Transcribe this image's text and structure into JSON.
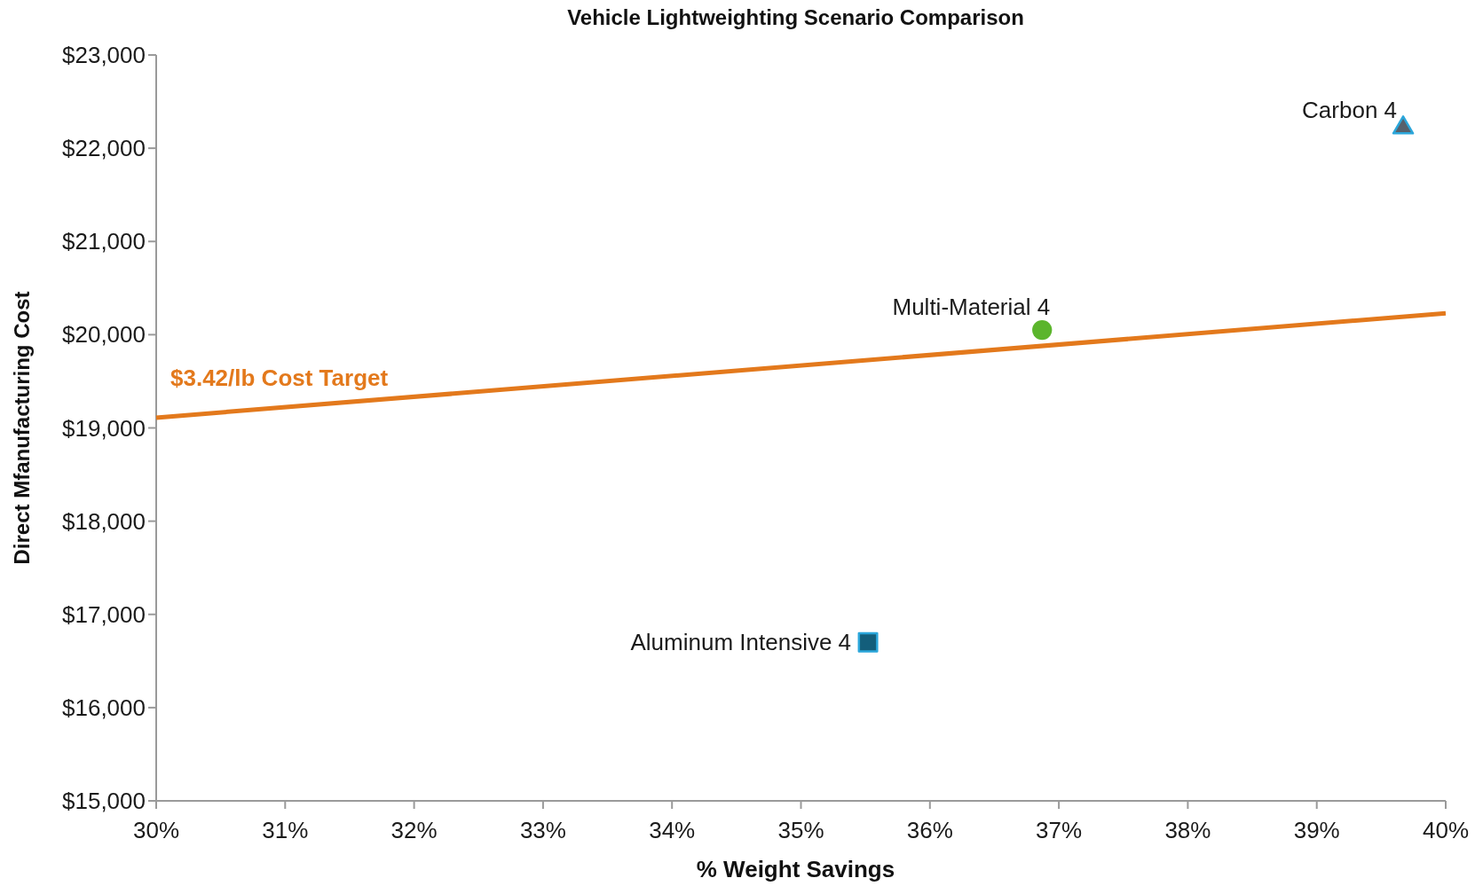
{
  "chart_data": {
    "type": "scatter",
    "title": "Vehicle Lightweighting Scenario Comparison",
    "xlabel": "% Weight Savings",
    "ylabel": "Direct Mfanufacturing Cost",
    "xlim": [
      30,
      40
    ],
    "xticks": [
      {
        "value": 30,
        "label": "30%"
      },
      {
        "value": 31,
        "label": "31%"
      },
      {
        "value": 32,
        "label": "32%"
      },
      {
        "value": 33,
        "label": "33%"
      },
      {
        "value": 34,
        "label": "34%"
      },
      {
        "value": 35,
        "label": "35%"
      },
      {
        "value": 36,
        "label": "36%"
      },
      {
        "value": 37,
        "label": "37%"
      },
      {
        "value": 38,
        "label": "38%"
      },
      {
        "value": 39,
        "label": "39%"
      },
      {
        "value": 40,
        "label": "40%"
      }
    ],
    "ylim": [
      15000,
      23000
    ],
    "yticks": [
      {
        "value": 15000,
        "label": "$15,000"
      },
      {
        "value": 16000,
        "label": "$16,000"
      },
      {
        "value": 17000,
        "label": "$17,000"
      },
      {
        "value": 18000,
        "label": "$18,000"
      },
      {
        "value": 19000,
        "label": "$19,000"
      },
      {
        "value": 20000,
        "label": "$20,000"
      },
      {
        "value": 21000,
        "label": "$21,000"
      },
      {
        "value": 22000,
        "label": "$22,000"
      },
      {
        "value": 23000,
        "label": "$23,000"
      }
    ],
    "series": [
      {
        "name": "$3.42/lb Cost Target",
        "type": "line",
        "color": "#e3791c",
        "x": [
          30,
          40
        ],
        "values": [
          19110,
          20230
        ]
      },
      {
        "name": "Aluminum Intensive 4",
        "x": [
          35.52
        ],
        "values": [
          16700
        ],
        "color": "#135e7b",
        "marker": "square"
      },
      {
        "name": "Multi-Material 4",
        "x": [
          36.87
        ],
        "values": [
          20050
        ],
        "color": "#5bb52c",
        "marker": "circle"
      },
      {
        "name": "Carbon 4",
        "x": [
          39.67
        ],
        "values": [
          22220
        ],
        "color": "#56616c",
        "marker": "triangle"
      }
    ]
  }
}
